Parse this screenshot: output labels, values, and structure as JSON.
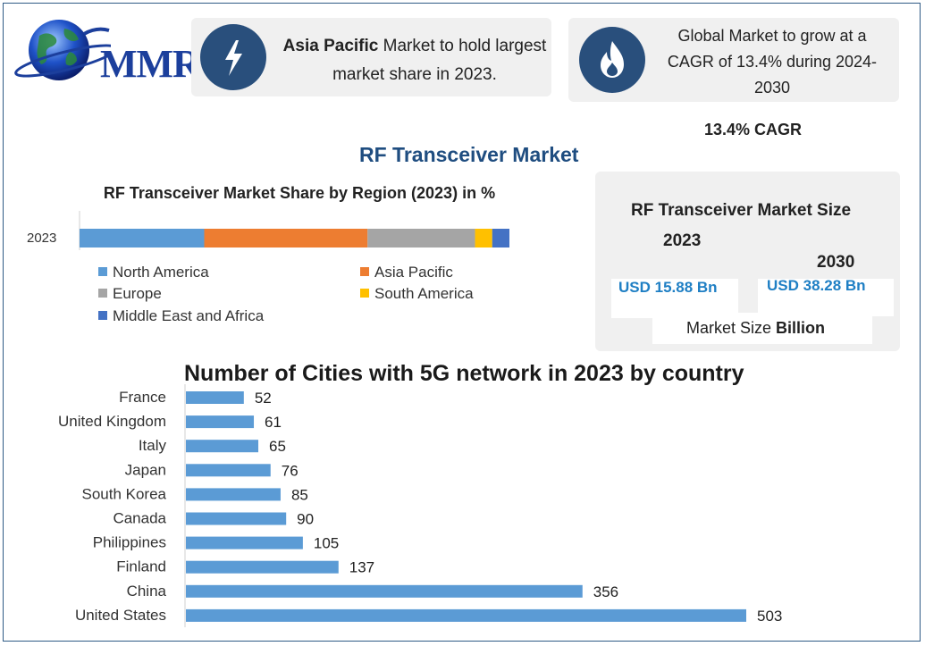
{
  "header": {
    "logo_text": "MMR",
    "info_1": {
      "bold": "Asia Pacific",
      "text": " Market to hold largest market share in 2023.",
      "icon": "lightning-icon"
    },
    "info_2": {
      "text": "Global Market to grow at a CAGR of 13.4% during 2024-2030",
      "icon": "flame-icon"
    },
    "cagr_label": "13.4% CAGR"
  },
  "main_title": "RF Transceiver Market",
  "market_size": {
    "title": "RF Transceiver Market Size",
    "year_a": "2023",
    "year_b": "2030",
    "value_a": "USD 15.88 Bn",
    "value_b": "USD 38.28 Bn",
    "unit_prefix": "Market Size ",
    "unit_bold": "Billion"
  },
  "colors": {
    "north_america": "#5b9bd5",
    "asia_pacific": "#ed7d31",
    "europe": "#a5a5a5",
    "south_america": "#ffc000",
    "mea": "#4472c4",
    "bars": "#5b9bd5",
    "icon_circle": "#294f7c",
    "accent_blue": "#1f7fc4"
  },
  "chart_data": [
    {
      "type": "bar",
      "orientation": "horizontal",
      "stacked": true,
      "title": "RF Transceiver Market Share by Region (2023) in %",
      "categories": [
        "2023"
      ],
      "series": [
        {
          "name": "North America",
          "values": [
            29
          ]
        },
        {
          "name": "Asia Pacific",
          "values": [
            38
          ]
        },
        {
          "name": "Europe",
          "values": [
            25
          ]
        },
        {
          "name": "South America",
          "values": [
            4
          ]
        },
        {
          "name": "Middle East and Africa",
          "values": [
            4
          ]
        }
      ],
      "xlim": [
        0,
        100
      ],
      "legend_position": "bottom"
    },
    {
      "type": "bar",
      "orientation": "horizontal",
      "title": "Number of Cities with 5G network in 2023 by country",
      "categories": [
        "France",
        "United Kingdom",
        "Italy",
        "Japan",
        "South Korea",
        "Canada",
        "Philippines",
        "Finland",
        "China",
        "United States"
      ],
      "values": [
        52,
        61,
        65,
        76,
        85,
        90,
        105,
        137,
        356,
        503
      ],
      "data_labels": [
        "52",
        "61",
        "65",
        "76",
        "85",
        "90",
        "105",
        "137",
        "356",
        "503"
      ],
      "xlim": [
        0,
        503
      ]
    }
  ]
}
